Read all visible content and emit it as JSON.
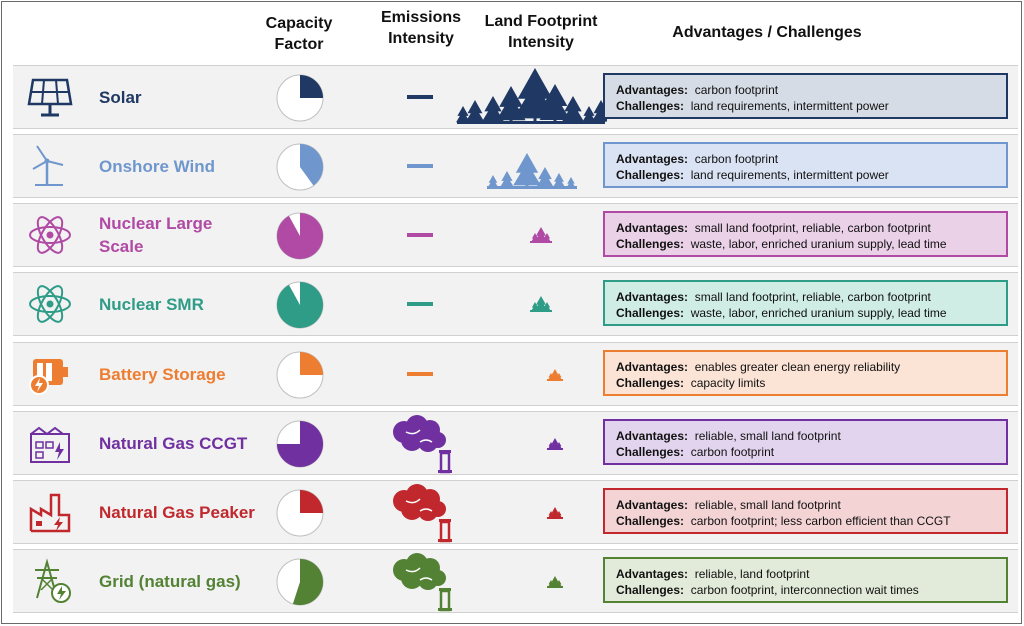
{
  "headers": {
    "capacity_factor": [
      "Capacity",
      "Factor"
    ],
    "emissions_intensity": [
      "Emissions",
      "Intensity"
    ],
    "land_footprint": [
      "Land Footprint",
      "Intensity"
    ],
    "adv_chal": "Advantages / Challenges"
  },
  "labels": {
    "advantages": "Advantages:",
    "challenges": "Challenges:"
  },
  "rows": [
    {
      "name": "Solar",
      "color": "#203864",
      "fill": "#d6dce5",
      "icon": "solar-panel-icon",
      "capacity_factor": 0.25,
      "emissions": "low",
      "land": "large",
      "advantages": "carbon footprint",
      "challenges": "land requirements, intermittent power"
    },
    {
      "name": "Onshore Wind",
      "color": "#6f97cd",
      "fill": "#dae3f3",
      "icon": "wind-turbine-icon",
      "capacity_factor": 0.4,
      "emissions": "low",
      "land": "medium",
      "advantages": "carbon footprint",
      "challenges": "land requirements, intermittent power"
    },
    {
      "name": "Nuclear Large Scale",
      "color": "#b04aa4",
      "fill": "#ead1e8",
      "icon": "atom-icon",
      "capacity_factor": 0.92,
      "emissions": "low",
      "land": "small",
      "advantages": "small land footprint, reliable, carbon footprint",
      "challenges": "waste, labor, enriched uranium supply, lead time"
    },
    {
      "name": "Nuclear SMR",
      "color": "#2e9c87",
      "fill": "#cfece5",
      "icon": "atom-icon",
      "capacity_factor": 0.92,
      "emissions": "low",
      "land": "small",
      "advantages": "small land footprint, reliable, carbon footprint",
      "challenges": "waste, labor, enriched uranium supply, lead time"
    },
    {
      "name": "Battery Storage",
      "color": "#ed7d31",
      "fill": "#fbe3d6",
      "icon": "battery-icon",
      "capacity_factor": 0.25,
      "emissions": "low",
      "land": "tiny",
      "advantages": "enables greater clean energy reliability",
      "challenges": "capacity limits"
    },
    {
      "name": "Natural Gas CCGT",
      "color": "#7030a0",
      "fill": "#e2d4ee",
      "icon": "gas-plant-icon",
      "capacity_factor": 0.75,
      "emissions": "high",
      "land": "tiny",
      "advantages": "reliable, small land footprint",
      "challenges": "carbon footprint"
    },
    {
      "name": "Natural Gas Peaker",
      "color": "#c0282d",
      "fill": "#f4d3d4",
      "icon": "factory-icon",
      "capacity_factor": 0.25,
      "emissions": "high",
      "land": "tiny",
      "advantages": "reliable, small land footprint",
      "challenges": "carbon footprint; less carbon efficient than CCGT"
    },
    {
      "name": "Grid (natural gas)",
      "color": "#548235",
      "fill": "#e2ead9",
      "icon": "transmission-tower-icon",
      "capacity_factor": 0.55,
      "emissions": "high",
      "land": "tiny",
      "advantages": "reliable, land footprint",
      "challenges": "carbon footprint, interconnection wait times"
    }
  ]
}
